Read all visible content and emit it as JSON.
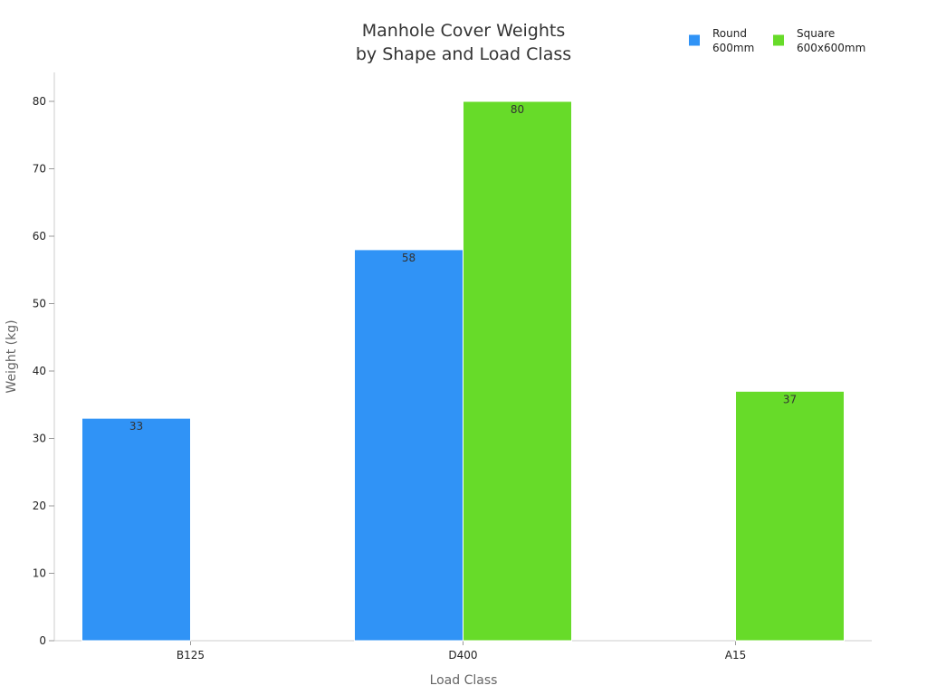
{
  "chart_data": {
    "type": "bar",
    "title": [
      "Manhole Cover Weights",
      "by Shape and Load Class"
    ],
    "xlabel": "Load Class",
    "ylabel": "Weight (kg)",
    "categories": [
      "B125",
      "D400",
      "A15"
    ],
    "series": [
      {
        "name": [
          "Round",
          "600mm"
        ],
        "color": "#3093f6",
        "values": [
          33,
          58,
          null
        ]
      },
      {
        "name": [
          "Square",
          "600x600mm"
        ],
        "color": "#67db29",
        "values": [
          null,
          80,
          37
        ]
      }
    ],
    "ylim": [
      0,
      84
    ],
    "yticks": [
      0,
      10,
      20,
      30,
      40,
      50,
      60,
      70,
      80
    ],
    "grid": false,
    "legend_position": "top-right",
    "data_labels": true
  }
}
